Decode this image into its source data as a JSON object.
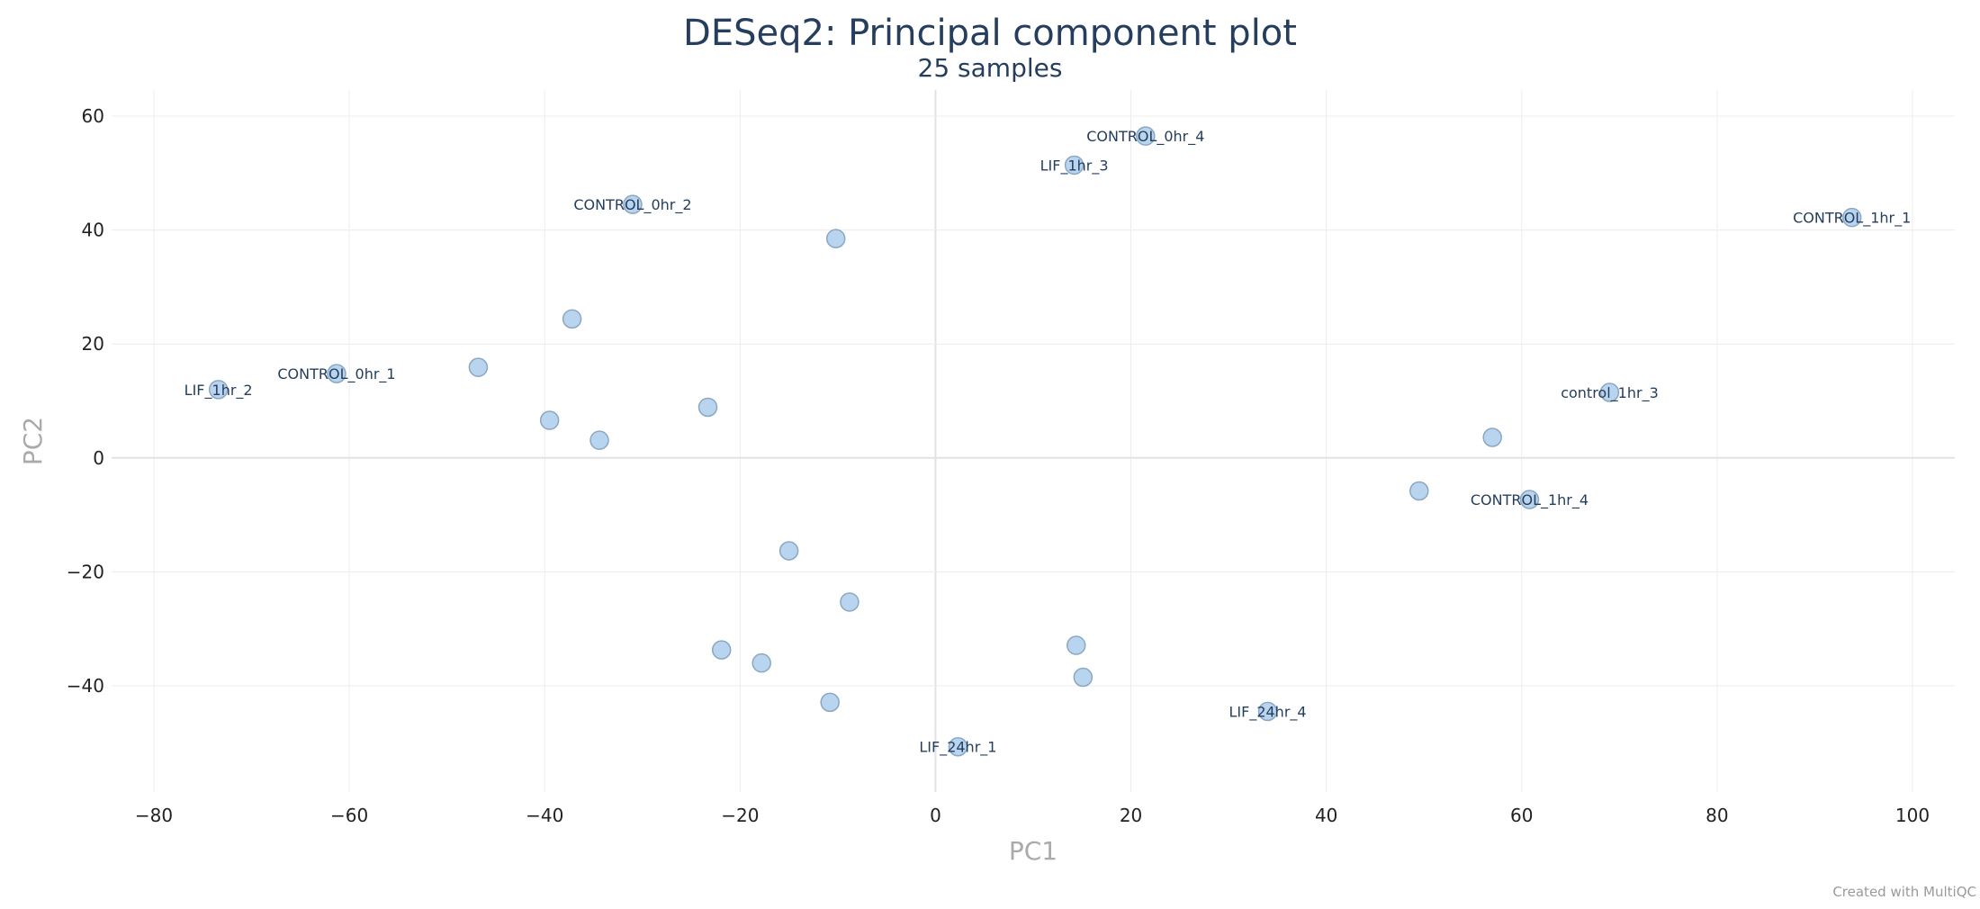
{
  "chart_data": {
    "type": "scatter",
    "title": "DESeq2: Principal component plot",
    "subtitle": "25 samples",
    "xlabel": "PC1",
    "ylabel": "PC2",
    "xlim": [
      -84,
      104
    ],
    "ylim": [
      -58,
      64
    ],
    "xticks": [
      -80,
      -60,
      -40,
      -20,
      0,
      20,
      40,
      60,
      80,
      100
    ],
    "yticks": [
      60,
      40,
      20,
      0,
      -20,
      -40
    ],
    "grid": true,
    "legend": "none",
    "marker_color": "#b8d4ef",
    "marker_edge_color": "#8aa7c3",
    "points": [
      {
        "x": 21.5,
        "y": 56.5,
        "label": "CONTROL_0hr_4"
      },
      {
        "x": 14.2,
        "y": 51.4,
        "label": "LIF_1hr_3"
      },
      {
        "x": -31.0,
        "y": 44.5,
        "label": "CONTROL_0hr_2"
      },
      {
        "x": -10.2,
        "y": 38.5,
        "label": ""
      },
      {
        "x": 93.8,
        "y": 42.2,
        "label": "CONTROL_1hr_1"
      },
      {
        "x": -37.2,
        "y": 24.4,
        "label": ""
      },
      {
        "x": -46.8,
        "y": 15.9,
        "label": ""
      },
      {
        "x": -61.3,
        "y": 14.8,
        "label": "CONTROL_0hr_1"
      },
      {
        "x": -73.4,
        "y": 12.0,
        "label": "LIF_1hr_2"
      },
      {
        "x": 69.0,
        "y": 11.5,
        "label": "control_1hr_3"
      },
      {
        "x": -23.3,
        "y": 8.9,
        "label": ""
      },
      {
        "x": -39.5,
        "y": 6.6,
        "label": ""
      },
      {
        "x": -34.4,
        "y": 3.1,
        "label": ""
      },
      {
        "x": 57.0,
        "y": 3.6,
        "label": ""
      },
      {
        "x": 49.5,
        "y": -5.8,
        "label": ""
      },
      {
        "x": 60.8,
        "y": -7.3,
        "label": "CONTROL_1hr_4"
      },
      {
        "x": -15.0,
        "y": -16.3,
        "label": ""
      },
      {
        "x": -8.8,
        "y": -25.3,
        "label": ""
      },
      {
        "x": -21.9,
        "y": -33.7,
        "label": ""
      },
      {
        "x": -17.8,
        "y": -36.0,
        "label": ""
      },
      {
        "x": 14.4,
        "y": -32.9,
        "label": ""
      },
      {
        "x": 15.1,
        "y": -38.5,
        "label": ""
      },
      {
        "x": -10.8,
        "y": -42.9,
        "label": ""
      },
      {
        "x": 34.0,
        "y": -44.5,
        "label": "LIF_24hr_4"
      },
      {
        "x": 2.3,
        "y": -50.7,
        "label": "LIF_24hr_1"
      }
    ]
  },
  "footer": {
    "credit": "Created with MultiQC"
  }
}
